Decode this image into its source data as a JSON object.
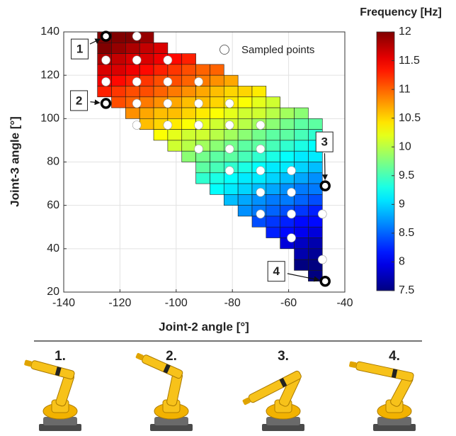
{
  "chart_data": {
    "type": "heatmap",
    "xlabel": "Joint-2 angle [°]",
    "ylabel": "Joint-3 angle [°]",
    "xlim": [
      -140,
      -40
    ],
    "ylim": [
      20,
      140
    ],
    "xticks": [
      -140,
      -120,
      -100,
      -80,
      -60,
      -40
    ],
    "yticks": [
      20,
      40,
      60,
      80,
      100,
      120,
      140
    ],
    "grid": true,
    "colormap": "jet",
    "x": [
      -125.5,
      -120.5,
      -115.5,
      -110.5,
      -105.5,
      -100.5,
      -95.5,
      -90.5,
      -85.5,
      -80.5,
      -75.5,
      -70.5,
      -65.5,
      -60.5,
      -55.5,
      -50.5
    ],
    "y": [
      137.5,
      132.5,
      127.5,
      122.5,
      117.5,
      112.5,
      107.5,
      102.5,
      97.5,
      92.5,
      87.5,
      82.5,
      77.5,
      72.5,
      67.5,
      62.5,
      57.5,
      52.5,
      47.5,
      42.5,
      37.5,
      32.5,
      27.5
    ],
    "z": [
      [
        12.1,
        12.1,
        12.0,
        11.9,
        null,
        null,
        null,
        null,
        null,
        null,
        null,
        null,
        null,
        null,
        null,
        null
      ],
      [
        12.0,
        11.9,
        11.8,
        11.7,
        11.6,
        null,
        null,
        null,
        null,
        null,
        null,
        null,
        null,
        null,
        null,
        null
      ],
      [
        11.8,
        11.7,
        11.6,
        11.6,
        11.5,
        11.4,
        11.3,
        null,
        null,
        null,
        null,
        null,
        null,
        null,
        null,
        null
      ],
      [
        11.6,
        11.6,
        11.5,
        11.4,
        11.3,
        11.2,
        11.1,
        11.0,
        11.0,
        null,
        null,
        null,
        null,
        null,
        null,
        null
      ],
      [
        11.5,
        11.4,
        11.3,
        11.2,
        11.1,
        11.1,
        11.0,
        10.9,
        10.8,
        10.7,
        null,
        null,
        null,
        null,
        null,
        null
      ],
      [
        11.3,
        11.2,
        11.1,
        11.1,
        11.0,
        10.9,
        10.8,
        10.7,
        10.6,
        10.5,
        10.5,
        10.4,
        null,
        null,
        null,
        null
      ],
      [
        null,
        11.1,
        11.0,
        10.9,
        10.8,
        10.7,
        10.6,
        10.6,
        10.5,
        10.4,
        10.3,
        10.2,
        10.1,
        null,
        null,
        null
      ],
      [
        null,
        null,
        10.8,
        10.7,
        10.6,
        10.6,
        10.5,
        10.4,
        10.3,
        10.2,
        10.1,
        10.1,
        10.0,
        9.9,
        9.8,
        null
      ],
      [
        null,
        null,
        null,
        10.6,
        10.5,
        10.4,
        10.3,
        10.2,
        10.1,
        10.1,
        10.0,
        9.9,
        9.8,
        9.7,
        9.6,
        9.6
      ],
      [
        null,
        null,
        null,
        null,
        10.3,
        10.2,
        10.1,
        10.1,
        10.0,
        9.9,
        9.8,
        9.7,
        9.6,
        9.6,
        9.5,
        9.4
      ],
      [
        null,
        null,
        null,
        null,
        null,
        10.1,
        10.0,
        9.9,
        9.8,
        9.7,
        9.6,
        9.6,
        9.5,
        9.4,
        9.3,
        9.2
      ],
      [
        null,
        null,
        null,
        null,
        null,
        null,
        9.8,
        9.7,
        9.6,
        9.6,
        9.5,
        9.4,
        9.3,
        9.2,
        9.1,
        9.1
      ],
      [
        null,
        null,
        null,
        null,
        null,
        null,
        null,
        9.6,
        9.5,
        9.4,
        9.3,
        9.2,
        9.1,
        9.1,
        9.0,
        8.9
      ],
      [
        null,
        null,
        null,
        null,
        null,
        null,
        null,
        9.4,
        9.3,
        9.2,
        9.1,
        9.1,
        9.0,
        8.9,
        8.8,
        8.7
      ],
      [
        null,
        null,
        null,
        null,
        null,
        null,
        null,
        null,
        9.2,
        9.1,
        9.0,
        8.9,
        8.8,
        8.7,
        8.6,
        8.6
      ],
      [
        null,
        null,
        null,
        null,
        null,
        null,
        null,
        null,
        null,
        8.9,
        8.8,
        8.7,
        8.6,
        8.6,
        8.5,
        8.4
      ],
      [
        null,
        null,
        null,
        null,
        null,
        null,
        null,
        null,
        null,
        null,
        8.7,
        8.6,
        8.5,
        8.4,
        8.3,
        8.2
      ],
      [
        null,
        null,
        null,
        null,
        null,
        null,
        null,
        null,
        null,
        null,
        null,
        8.4,
        8.3,
        8.2,
        8.1,
        8.1
      ],
      [
        null,
        null,
        null,
        null,
        null,
        null,
        null,
        null,
        null,
        null,
        null,
        null,
        8.2,
        8.1,
        8.0,
        7.9
      ],
      [
        null,
        null,
        null,
        null,
        null,
        null,
        null,
        null,
        null,
        null,
        null,
        null,
        null,
        7.9,
        7.8,
        7.7
      ],
      [
        null,
        null,
        null,
        null,
        null,
        null,
        null,
        null,
        null,
        null,
        null,
        null,
        null,
        null,
        7.7,
        7.6
      ],
      [
        null,
        null,
        null,
        null,
        null,
        null,
        null,
        null,
        null,
        null,
        null,
        null,
        null,
        null,
        7.5,
        7.4
      ],
      [
        null,
        null,
        null,
        null,
        null,
        null,
        null,
        null,
        null,
        null,
        null,
        null,
        null,
        null,
        null,
        7.2
      ]
    ],
    "colorbar": {
      "title": "Frequency [Hz]",
      "lim": [
        7.5,
        12
      ],
      "ticks": [
        12,
        11.5,
        11,
        10.5,
        10,
        9.5,
        9,
        8.5,
        8,
        7.5
      ]
    },
    "points": {
      "name": "Sampled points",
      "color": "#ffffff",
      "x": [
        -125,
        -125,
        -114,
        -114,
        -114,
        -114,
        -114,
        -103,
        -103,
        -103,
        -103,
        -92,
        -92,
        -92,
        -92,
        -81,
        -81,
        -81,
        -81,
        -70,
        -70,
        -70,
        -70,
        -70,
        -59,
        -59,
        -59,
        -59,
        -48,
        -48
      ],
      "y": [
        127,
        117,
        138,
        127,
        117,
        107,
        97,
        127,
        117,
        107,
        97,
        117,
        107,
        97,
        86,
        107,
        97,
        86,
        76,
        97,
        86,
        76,
        66,
        56,
        76,
        66,
        56,
        45,
        56,
        35
      ]
    },
    "legend": "upper right",
    "highlights": {
      "labels": [
        "1",
        "2",
        "3",
        "4"
      ],
      "x": [
        -125,
        -125,
        -47,
        -47
      ],
      "y": [
        138,
        107,
        69,
        25
      ]
    }
  },
  "poses": {
    "labels": [
      "1.",
      "2.",
      "3.",
      "4."
    ]
  }
}
